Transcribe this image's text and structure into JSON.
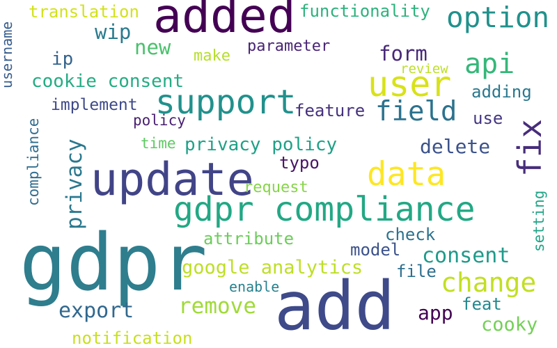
{
  "words": [
    {
      "text": "gdpr",
      "color": "#2e7e8e",
      "rotated": false
    },
    {
      "text": "add",
      "color": "#3e4a89",
      "rotated": false
    },
    {
      "text": "update",
      "color": "#414487",
      "rotated": false
    },
    {
      "text": "added",
      "color": "#440154",
      "rotated": false
    },
    {
      "text": "gdpr compliance",
      "color": "#22a884",
      "rotated": false
    },
    {
      "text": "support",
      "color": "#21918c",
      "rotated": false
    },
    {
      "text": "user",
      "color": "#d8e219",
      "rotated": false
    },
    {
      "text": "data",
      "color": "#fde725",
      "rotated": false
    },
    {
      "text": "option",
      "color": "#21918c",
      "rotated": false
    },
    {
      "text": "change",
      "color": "#c2df23",
      "rotated": false
    },
    {
      "text": "fix",
      "color": "#472d7b",
      "rotated": true
    },
    {
      "text": "field",
      "color": "#2c728e",
      "rotated": false
    },
    {
      "text": "api",
      "color": "#35b779",
      "rotated": false
    },
    {
      "text": "privacy",
      "color": "#2a788e",
      "rotated": true
    },
    {
      "text": "remove",
      "color": "#a0da39",
      "rotated": false
    },
    {
      "text": "consent",
      "color": "#1f9a8a",
      "rotated": false
    },
    {
      "text": "export",
      "color": "#31688e",
      "rotated": false
    },
    {
      "text": "google analytics",
      "color": "#bddf26",
      "rotated": false
    },
    {
      "text": "privacy policy",
      "color": "#1fa187",
      "rotated": false
    },
    {
      "text": "cookie consent",
      "color": "#25ac82",
      "rotated": false
    },
    {
      "text": "new",
      "color": "#4ac16d",
      "rotated": false
    },
    {
      "text": "wip",
      "color": "#297b8e",
      "rotated": false
    },
    {
      "text": "form",
      "color": "#482878",
      "rotated": false
    },
    {
      "text": "delete",
      "color": "#3b528b",
      "rotated": false
    },
    {
      "text": "cooky",
      "color": "#73d056",
      "rotated": false
    },
    {
      "text": "functionality",
      "color": "#2db27d",
      "rotated": false
    },
    {
      "text": "translation",
      "color": "#d2e21b",
      "rotated": false
    },
    {
      "text": "notification",
      "color": "#c8e020",
      "rotated": false
    },
    {
      "text": "feat",
      "color": "#23888e",
      "rotated": false
    },
    {
      "text": "app",
      "color": "#440154",
      "rotated": false
    },
    {
      "text": "adding",
      "color": "#2a788e",
      "rotated": false
    },
    {
      "text": "ip",
      "color": "#33638d",
      "rotated": false
    },
    {
      "text": "implement",
      "color": "#3e4989",
      "rotated": false
    },
    {
      "text": "feature",
      "color": "#46327e",
      "rotated": false
    },
    {
      "text": "parameter",
      "color": "#482475",
      "rotated": false
    },
    {
      "text": "make",
      "color": "#b5de2b",
      "rotated": false
    },
    {
      "text": "attribute",
      "color": "#6ccd5a",
      "rotated": false
    },
    {
      "text": "check",
      "color": "#2c728e",
      "rotated": false
    },
    {
      "text": "model",
      "color": "#3b528b",
      "rotated": false
    },
    {
      "text": "file",
      "color": "#2e6f8e",
      "rotated": false
    },
    {
      "text": "typo",
      "color": "#471365",
      "rotated": false
    },
    {
      "text": "use",
      "color": "#453781",
      "rotated": false
    },
    {
      "text": "policy",
      "color": "#481f70",
      "rotated": false
    },
    {
      "text": "time",
      "color": "#5ec962",
      "rotated": false
    },
    {
      "text": "request",
      "color": "#87d549",
      "rotated": false
    },
    {
      "text": "review",
      "color": "#bddf26",
      "rotated": false
    },
    {
      "text": "enable",
      "color": "#26828e",
      "rotated": false
    },
    {
      "text": "setting",
      "color": "#20a486",
      "rotated": true
    },
    {
      "text": "username",
      "color": "#365c8d",
      "rotated": true
    },
    {
      "text": "compliance",
      "color": "#2f6c8e",
      "rotated": true
    }
  ]
}
